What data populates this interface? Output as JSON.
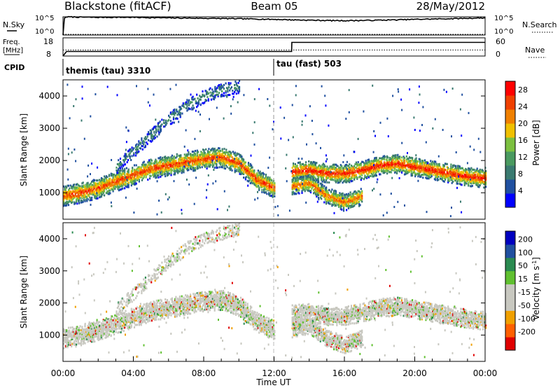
{
  "header": {
    "station": "Blackstone (fitACF)",
    "beam": "Beam 05",
    "date": "28/May/2012"
  },
  "left_labels": {
    "nsky": "N.Sky",
    "freq_line1": "Freq.",
    "freq_line2": "[MHz]",
    "cpid": "CPID"
  },
  "right_labels": {
    "nsearch": "N.Search",
    "nave": "Nave"
  },
  "noise_axis": {
    "left_ticks": [
      "10^5",
      "10^0"
    ],
    "right_ticks": [
      "10^5",
      "10^0"
    ]
  },
  "freq_axis": {
    "left_ticks": [
      "18",
      "8"
    ],
    "right_ticks": [
      "60",
      "0"
    ]
  },
  "cpid_segments": [
    {
      "label": "themis (tau) 3310",
      "start_hour": 0
    },
    {
      "label": "tau (fast) 503",
      "start_hour": 12
    }
  ],
  "colors": {
    "power_scale": [
      "#0000ff",
      "#2050a0",
      "#3a7a70",
      "#4a9a60",
      "#7cc040",
      "#f0c000",
      "#f08000",
      "#f04000",
      "#ff0000"
    ],
    "velocity_scale": [
      "#e00000",
      "#ff6000",
      "#f0a000",
      "#c8c8c0",
      "#c8c8c0",
      "#60c030",
      "#2a8a50",
      "#2050a0",
      "#0000c0"
    ]
  },
  "chart_data": [
    {
      "type": "line",
      "panel": "noise",
      "x_unit": "hour UT",
      "xlim": [
        0,
        24
      ],
      "series": [
        {
          "name": "N.Sky",
          "x": [
            0,
            0.2,
            1,
            2,
            3,
            4,
            5,
            6,
            7,
            8,
            9,
            10,
            11,
            12,
            13,
            14,
            15,
            16,
            17,
            18,
            19,
            20,
            21,
            22,
            23,
            24
          ],
          "values": [
            1,
            100000,
            80000,
            70000,
            75000,
            70000,
            60000,
            50000,
            45000,
            40000,
            35000,
            30000,
            25000,
            20000,
            15000,
            12000,
            10000,
            9000,
            10000,
            12000,
            15000,
            20000,
            25000,
            30000,
            40000,
            50000
          ]
        },
        {
          "name": "N.Search",
          "x": [
            0,
            24
          ],
          "values": [
            1,
            1
          ]
        }
      ]
    },
    {
      "type": "line",
      "panel": "frequency",
      "x_unit": "hour UT",
      "xlim": [
        0,
        24
      ],
      "series": [
        {
          "name": "Freq.",
          "x": [
            0,
            0.2,
            13,
            13.01,
            24
          ],
          "values": [
            8,
            10.5,
            10.5,
            15.5,
            15.5
          ]
        },
        {
          "name": "Nave",
          "x": [
            0,
            24
          ],
          "values": [
            20,
            20
          ]
        }
      ]
    },
    {
      "type": "heatmap",
      "panel": "power",
      "title": "",
      "xlabel": "",
      "ylabel": "Slant Range [km]",
      "colorbar_label": "Power [dB]",
      "colorbar_ticks": [
        4,
        8,
        12,
        16,
        20,
        24,
        28
      ],
      "colorbar_range": [
        0,
        30
      ],
      "xlim": [
        0,
        24
      ],
      "ylim": [
        180,
        4500
      ],
      "y_ticks": [
        1000,
        2000,
        3000,
        4000
      ],
      "bands": [
        {
          "hours": [
            0,
            1,
            2,
            3,
            4,
            5,
            6,
            7,
            8,
            9,
            10,
            11,
            12
          ],
          "center_km": [
            900,
            1000,
            1150,
            1350,
            1550,
            1750,
            1850,
            1950,
            2050,
            2100,
            1900,
            1400,
            1150
          ],
          "width_km": 300,
          "peak_db": 26
        },
        {
          "hours": [
            13,
            14,
            15,
            16,
            17,
            18,
            19,
            20,
            21,
            22,
            23,
            24
          ],
          "center_km": [
            1650,
            1700,
            1600,
            1600,
            1700,
            1850,
            1900,
            1800,
            1700,
            1600,
            1500,
            1450
          ],
          "width_km": 280,
          "peak_db": 28
        },
        {
          "hours": [
            13,
            14,
            15,
            16,
            17
          ],
          "center_km": [
            1200,
            1300,
            900,
            700,
            900
          ],
          "width_km": 260,
          "peak_db": 24
        },
        {
          "hours": [
            3,
            4,
            5,
            6,
            7,
            8,
            9,
            10
          ],
          "center_km": [
            1800,
            2300,
            2800,
            3300,
            3700,
            4000,
            4200,
            4300
          ],
          "width_km": 200,
          "peak_db": 10
        }
      ]
    },
    {
      "type": "heatmap",
      "panel": "velocity",
      "title": "",
      "xlabel": "Time UT",
      "ylabel": "Slant Range [km]",
      "colorbar_label": "Velocity [m s^-1]",
      "colorbar_ticks": [
        200,
        100,
        50,
        15,
        -15,
        -50,
        -100,
        -200
      ],
      "colorbar_range": [
        -250,
        250
      ],
      "xlim": [
        0,
        24
      ],
      "ylim": [
        180,
        4500
      ],
      "y_ticks": [
        1000,
        2000,
        3000,
        4000
      ],
      "x_ticks": [
        "00:00",
        "04:00",
        "08:00",
        "12:00",
        "16:00",
        "20:00",
        "00:00"
      ]
    }
  ],
  "axis_labels": {
    "power_ylabel": "Slant Range [km]",
    "velocity_ylabel": "Slant Range [km]",
    "xlabel": "Time UT",
    "power_cbar": "Power [dB]",
    "velocity_cbar": "Velocity [m s",
    "velocity_cbar_exp": "-1",
    "velocity_cbar_end": "]"
  },
  "power_cbar_ticks": [
    "28",
    "24",
    "20",
    "16",
    "12",
    "8",
    "4"
  ],
  "velocity_cbar_ticks": [
    "200",
    "100",
    "50",
    "15",
    "-15",
    "-50",
    "-100",
    "-200"
  ],
  "range_ticks": [
    "4000",
    "3000",
    "2000",
    "1000"
  ],
  "time_ticks": [
    "00:00",
    "04:00",
    "08:00",
    "12:00",
    "16:00",
    "20:00",
    "00:00"
  ]
}
